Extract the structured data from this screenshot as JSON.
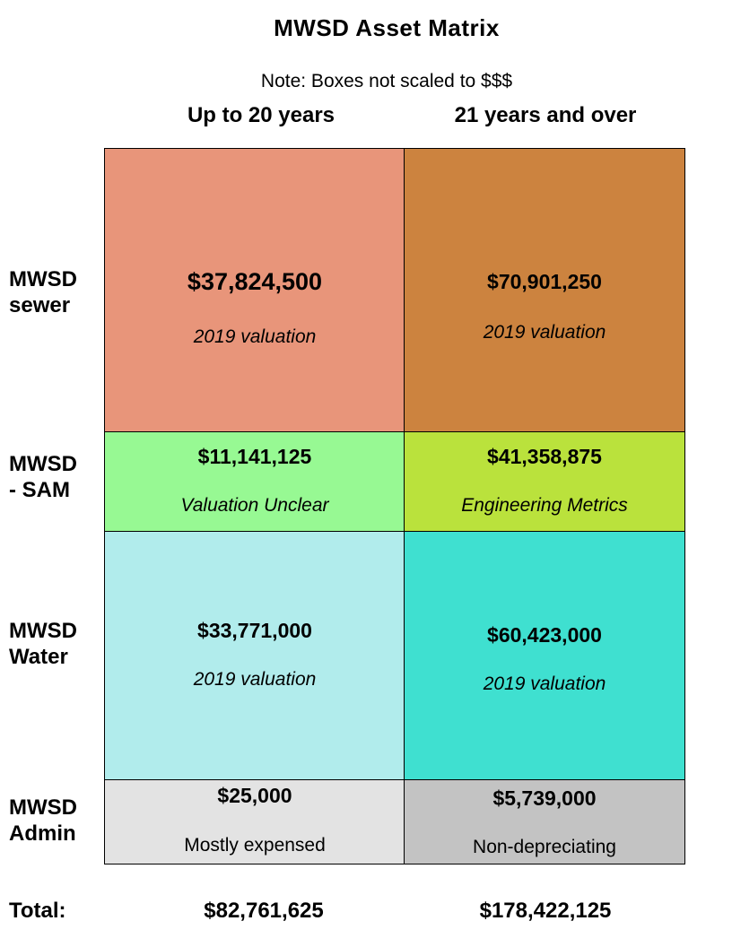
{
  "title": "MWSD Asset Matrix",
  "note": "Note: Boxes not scaled to $$$",
  "columns": [
    "Up to 20 years",
    "21 years and over"
  ],
  "rows": [
    {
      "label_line1": "MWSD",
      "label_line2": "sewer"
    },
    {
      "label_line1": "MWSD",
      "label_line2": "- SAM"
    },
    {
      "label_line1": "MWSD",
      "label_line2": "Water"
    },
    {
      "label_line1": "MWSD",
      "label_line2": "Admin"
    }
  ],
  "cells": {
    "sewer_short": {
      "value": "$37,824,500",
      "note": "2019 valuation",
      "color": "#e8957a"
    },
    "sewer_long": {
      "value": "$70,901,250",
      "note": "2019 valuation",
      "color": "#cc833f"
    },
    "sam_short": {
      "value": "$11,141,125",
      "note": "Valuation Unclear",
      "color": "#97f993"
    },
    "sam_long": {
      "value": "$41,358,875",
      "note": "Engineering Metrics",
      "color": "#bae23c"
    },
    "water_short": {
      "value": "$33,771,000",
      "note": "2019 valuation",
      "color": "#b1ecec"
    },
    "water_long": {
      "value": "$60,423,000",
      "note": "2019 valuation",
      "color": "#3fe0d0"
    },
    "admin_short": {
      "value": "$25,000",
      "note": "Mostly expensed",
      "color": "#e3e3e3"
    },
    "admin_long": {
      "value": "$5,739,000",
      "note": "Non-depreciating",
      "color": "#c3c3c3"
    }
  },
  "totals": {
    "label": "Total:",
    "short": "$82,761,625",
    "long": "$178,422,125"
  }
}
